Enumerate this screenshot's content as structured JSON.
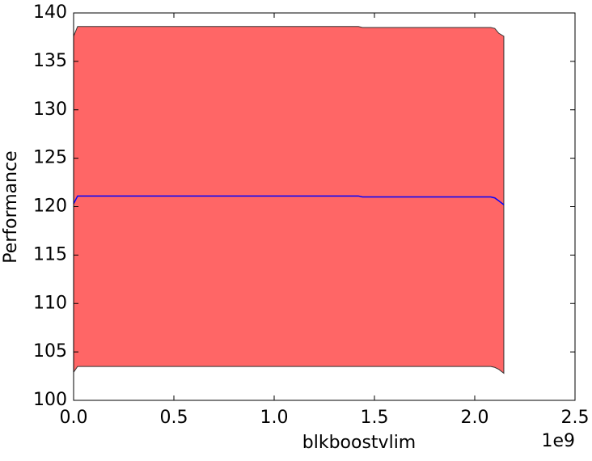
{
  "chart_data": {
    "type": "line",
    "x_label": "blkboostvlim",
    "y_label": "Performance",
    "x_offset_label": "1e9",
    "x": [
      0,
      20000000,
      1420000000,
      1440000000,
      2080000000,
      2100000000,
      2120000000,
      2145000000
    ],
    "values": [
      120.3,
      121.1,
      121.1,
      121.0,
      121.0,
      120.9,
      120.6,
      120.2
    ],
    "band_upper": [
      137.6,
      138.6,
      138.6,
      138.5,
      138.5,
      138.4,
      137.9,
      137.6
    ],
    "band_lower": [
      102.9,
      103.5,
      103.5,
      103.5,
      103.5,
      103.4,
      103.2,
      102.8
    ],
    "color": "#0000ff",
    "band_color": "#ff6666",
    "xlim": [
      0,
      2500000000
    ],
    "xticks": [
      {
        "value": 0,
        "label": "0.0"
      },
      {
        "value": 500000000,
        "label": "0.5"
      },
      {
        "value": 1000000000,
        "label": "1.0"
      },
      {
        "value": 1500000000,
        "label": "1.5"
      },
      {
        "value": 2000000000,
        "label": "2.0"
      },
      {
        "value": 2500000000,
        "label": "2.5"
      }
    ],
    "ylim": [
      100,
      140
    ],
    "yticks": [
      100,
      105,
      110,
      115,
      120,
      125,
      130,
      135,
      140
    ],
    "grid": false
  }
}
